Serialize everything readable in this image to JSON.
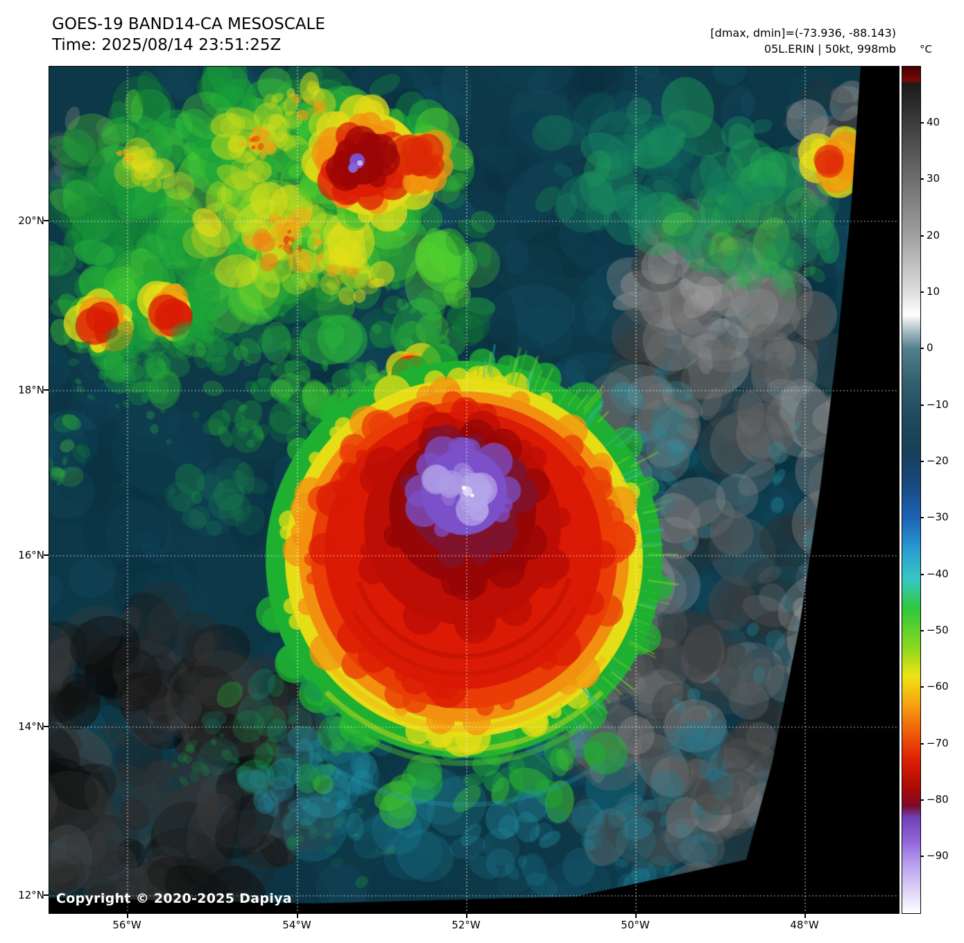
{
  "header": {
    "title": "GOES-19 BAND14-CA MESOSCALE",
    "time_line": "Time: 2025/08/14 23:51:25Z",
    "dmax_dmin_line": "[dmax, dmin]=(-73.936, -88.143)",
    "storm_line": "05L.ERIN | 50kt, 998mb"
  },
  "map": {
    "copyright": "Copyright © 2020-2025 Dapiya",
    "lat_labels": [
      "20°N",
      "18°N",
      "16°N",
      "14°N",
      "12°N"
    ],
    "lon_labels": [
      "56°W",
      "54°W",
      "52°W",
      "50°W",
      "48°W"
    ]
  },
  "colorbar": {
    "unit_label": "°C",
    "tick_labels": [
      "40",
      "30",
      "20",
      "10",
      "0",
      "−10",
      "−20",
      "−30",
      "−40",
      "−50",
      "−60",
      "−70",
      "−80",
      "−90"
    ],
    "temp_max": 50,
    "temp_min": -100,
    "stops": [
      {
        "t": 50,
        "c": "#480000"
      },
      {
        "t": 47.5,
        "c": "#7a0a0a"
      },
      {
        "t": 47,
        "c": "#1a1a1a"
      },
      {
        "t": 30,
        "c": "#6e6e6e"
      },
      {
        "t": 20,
        "c": "#a0a0a0"
      },
      {
        "t": 10,
        "c": "#dedede"
      },
      {
        "t": 6,
        "c": "#ffffff"
      },
      {
        "t": 3,
        "c": "#a4bac2"
      },
      {
        "t": 0,
        "c": "#537f8d"
      },
      {
        "t": -6,
        "c": "#31606f"
      },
      {
        "t": -12,
        "c": "#204a5c"
      },
      {
        "t": -18,
        "c": "#183f58"
      },
      {
        "t": -24,
        "c": "#18497e"
      },
      {
        "t": -30,
        "c": "#1e63b6"
      },
      {
        "t": -36,
        "c": "#2ba0d2"
      },
      {
        "t": -41,
        "c": "#36c8c2"
      },
      {
        "t": -46,
        "c": "#2ec83c"
      },
      {
        "t": -53,
        "c": "#8cd820"
      },
      {
        "t": -58,
        "c": "#eee414"
      },
      {
        "t": -63,
        "c": "#f6a310"
      },
      {
        "t": -68,
        "c": "#f05c08"
      },
      {
        "t": -73,
        "c": "#dc1e04"
      },
      {
        "t": -78,
        "c": "#a80a04"
      },
      {
        "t": -81,
        "c": "#7c0a2a"
      },
      {
        "t": -83,
        "c": "#7040b6"
      },
      {
        "t": -87,
        "c": "#8e62d8"
      },
      {
        "t": -91,
        "c": "#b49cec"
      },
      {
        "t": -96,
        "c": "#ded2f8"
      },
      {
        "t": -100,
        "c": "#ffffff"
      }
    ]
  }
}
